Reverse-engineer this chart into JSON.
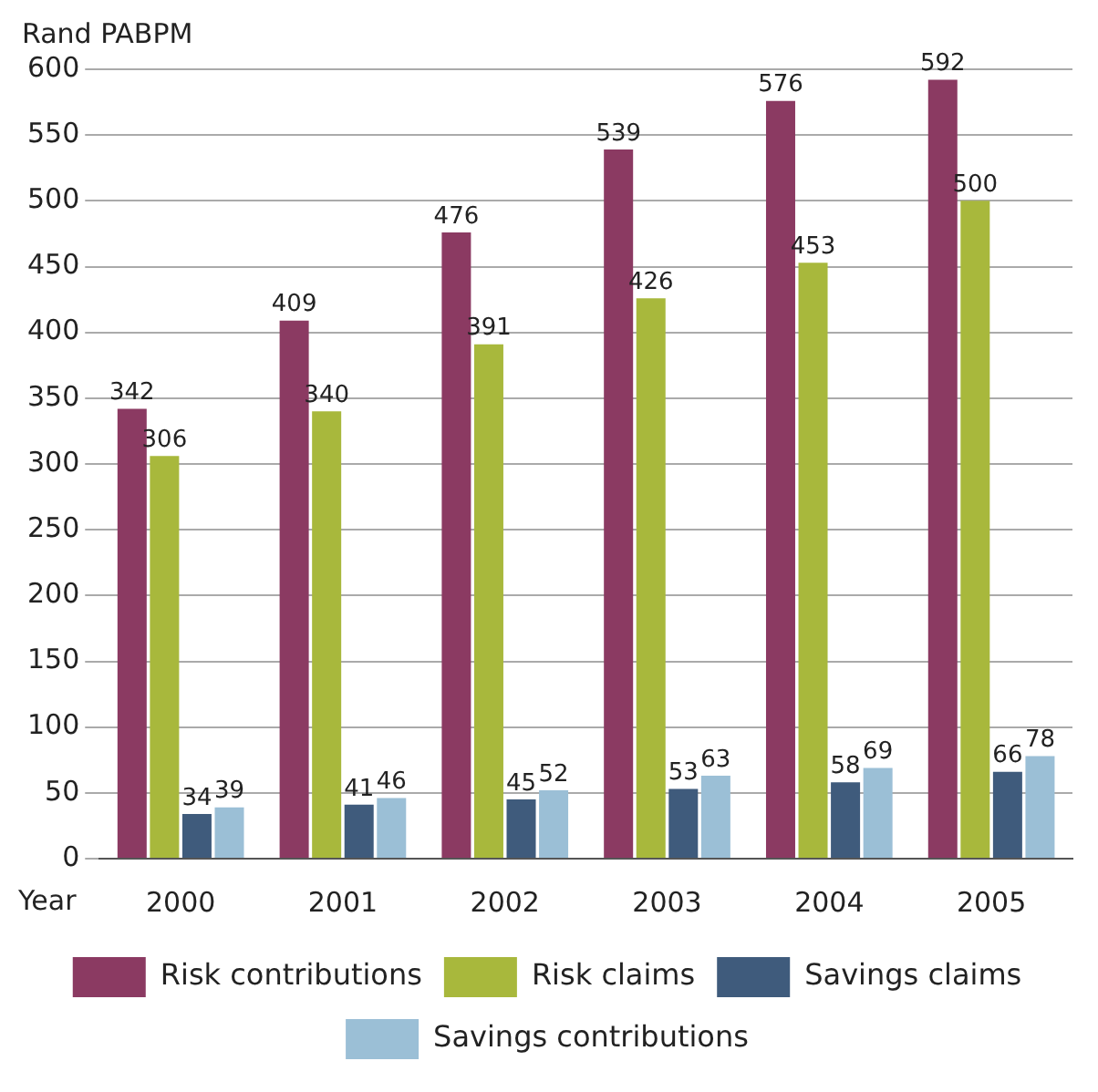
{
  "chart_data": {
    "type": "bar",
    "ylabel": "Rand PABPM",
    "xlabel": "Year",
    "categories": [
      "2000",
      "2001",
      "2002",
      "2003",
      "2004",
      "2005"
    ],
    "series": [
      {
        "name": "Risk contributions",
        "color": "#8b3a62",
        "values": [
          342,
          409,
          476,
          539,
          576,
          592
        ]
      },
      {
        "name": "Risk claims",
        "color": "#a8b83c",
        "values": [
          306,
          340,
          391,
          426,
          453,
          500
        ]
      },
      {
        "name": "Savings claims",
        "color": "#3f5b7c",
        "values": [
          34,
          41,
          45,
          53,
          58,
          66
        ]
      },
      {
        "name": "Savings contributions",
        "color": "#9bbfd6",
        "values": [
          39,
          46,
          52,
          63,
          69,
          78
        ]
      }
    ],
    "ylim": [
      0,
      600
    ],
    "yticks": [
      0,
      50,
      100,
      150,
      200,
      250,
      300,
      350,
      400,
      450,
      500,
      550,
      600
    ],
    "grid": "y",
    "legend": "bottom",
    "data_labels": true
  }
}
